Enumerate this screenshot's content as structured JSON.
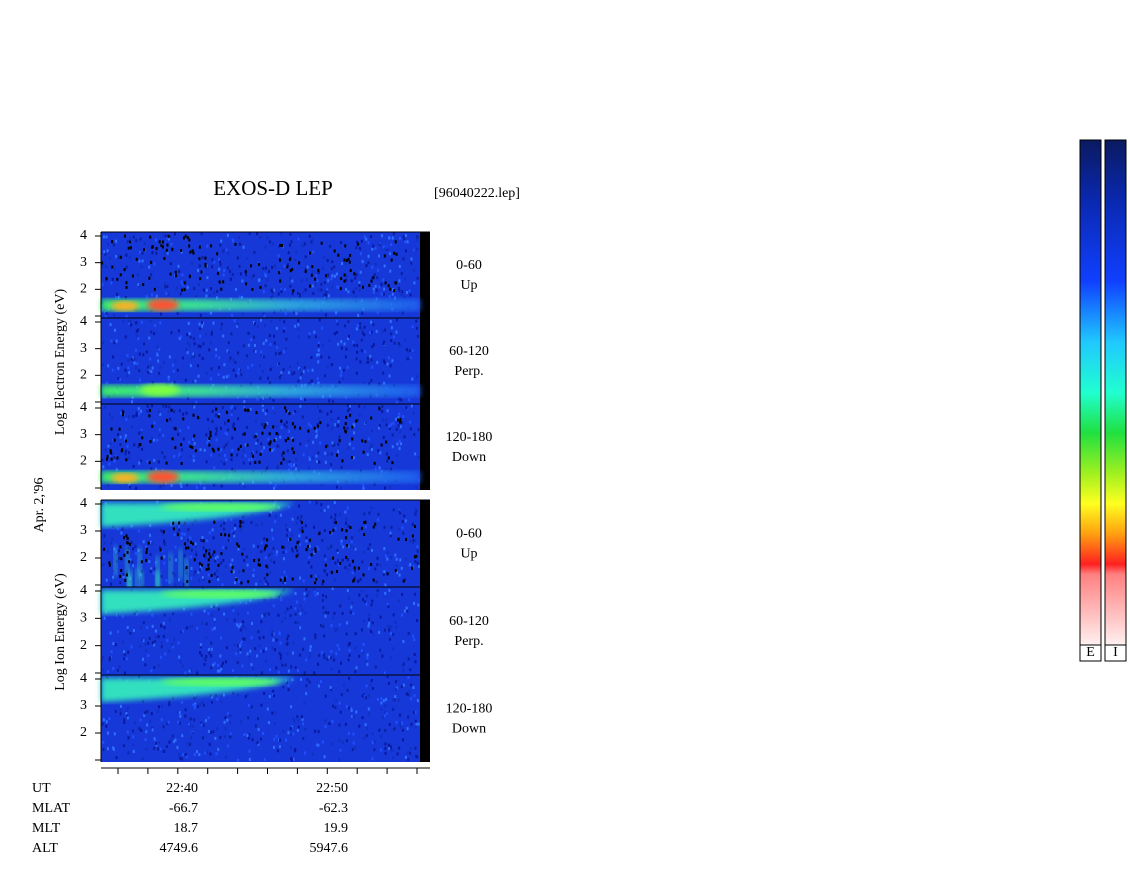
{
  "header": {
    "title": "EXOS-D LEP",
    "file": "[96040222.lep]",
    "date": "Apr. 2,'96"
  },
  "electron_label": "Log  Electron  Energy  (eV)",
  "ion_label": "Log  Ion  Energy  (eV)",
  "energy_ticks": [
    2,
    3,
    4
  ],
  "electron_panels": [
    {
      "angle": "0-60",
      "direction": "Up"
    },
    {
      "angle": "60-120",
      "direction": "Perp."
    },
    {
      "angle": "120-180",
      "direction": "Down"
    }
  ],
  "ion_panels": [
    {
      "angle": "0-60",
      "direction": "Up"
    },
    {
      "angle": "60-120",
      "direction": "Perp."
    },
    {
      "angle": "120-180",
      "direction": "Down"
    }
  ],
  "footer": {
    "labels": [
      "UT",
      "MLAT",
      "MLT",
      "ALT"
    ],
    "columns": [
      [
        "22:40",
        "-66.7",
        "18.7",
        "4749.6"
      ],
      [
        "22:50",
        "-62.3",
        "19.9",
        "5947.6"
      ]
    ]
  },
  "colorbars": [
    "E",
    "I"
  ]
}
